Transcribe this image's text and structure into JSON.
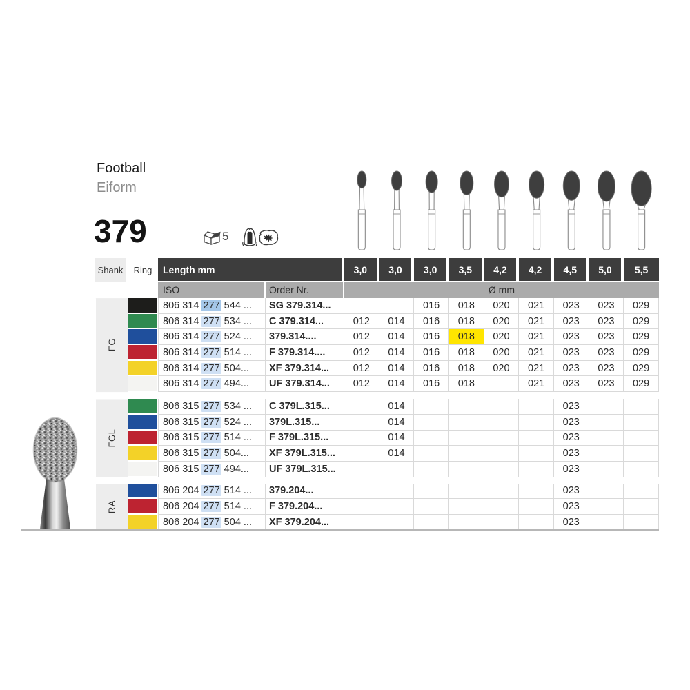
{
  "header": {
    "title": "Football",
    "subtitle": "Eiform",
    "figure_number": "379",
    "pack_quantity": "5",
    "icons": [
      "pack-box-icon",
      "crown-prep-icon",
      "caries-excavation-icon"
    ]
  },
  "colors": {
    "header_dark": "#3d3d3d",
    "subheader_gray": "#ababab",
    "label_light": "#ededed",
    "grid_line": "#d9d9d9",
    "iso_highlight": "#cfe0f4",
    "iso_highlight_strong": "#a5c7e9",
    "value_highlight": "#ffe500",
    "ring_black": "#1d1d1b",
    "ring_green": "#2f8a50",
    "ring_blue": "#1f4f9c",
    "ring_red": "#bd2331",
    "ring_yellow": "#f3d228",
    "ring_white": "#f4f4f2"
  },
  "table": {
    "shank_label": "Shank",
    "ring_label": "Ring",
    "length_label": "Length mm",
    "lengths": [
      "3,0",
      "3,0",
      "3,0",
      "3,5",
      "4,2",
      "4,2",
      "4,5",
      "5,0",
      "5,5"
    ],
    "iso_label": "ISO",
    "order_label": "Order Nr.",
    "diameter_label": "Ø mm",
    "sections": [
      {
        "shank": "FG",
        "rows": [
          {
            "ring": "black",
            "iso_prefix": "806 314 ",
            "iso_hl": "277",
            "iso_suffix": " 544 ...",
            "order": "SG 379.314...",
            "hl_strong": true,
            "values": [
              "",
              "",
              "016",
              "018",
              "020",
              "021",
              "023",
              "023",
              "029"
            ]
          },
          {
            "ring": "green",
            "iso_prefix": "806 314 ",
            "iso_hl": "277",
            "iso_suffix": " 534 ...",
            "order": "C 379.314...",
            "values": [
              "012",
              "014",
              "016",
              "018",
              "020",
              "021",
              "023",
              "023",
              "029"
            ]
          },
          {
            "ring": "blue",
            "iso_prefix": "806 314 ",
            "iso_hl": "277",
            "iso_suffix": " 524 ...",
            "order": "379.314....",
            "hl_col": 3,
            "values": [
              "012",
              "014",
              "016",
              "018",
              "020",
              "021",
              "023",
              "023",
              "029"
            ]
          },
          {
            "ring": "red",
            "iso_prefix": "806 314 ",
            "iso_hl": "277",
            "iso_suffix": " 514 ...",
            "order": "F 379.314....",
            "values": [
              "012",
              "014",
              "016",
              "018",
              "020",
              "021",
              "023",
              "023",
              "029"
            ]
          },
          {
            "ring": "yellow",
            "iso_prefix": "806 314 ",
            "iso_hl": "277",
            "iso_suffix": " 504...",
            "order": "XF 379.314...",
            "values": [
              "012",
              "014",
              "016",
              "018",
              "020",
              "021",
              "023",
              "023",
              "029"
            ]
          },
          {
            "ring": "white",
            "iso_prefix": "806 314 ",
            "iso_hl": "277",
            "iso_suffix": " 494...",
            "order": "UF 379.314...",
            "values": [
              "012",
              "014",
              "016",
              "018",
              "",
              "021",
              "023",
              "023",
              "029"
            ]
          }
        ]
      },
      {
        "shank": "FGL",
        "rows": [
          {
            "ring": "green",
            "iso_prefix": "806 315 ",
            "iso_hl": "277",
            "iso_suffix": " 534 ...",
            "order": "C 379L.315...",
            "values": [
              "",
              "014",
              "",
              "",
              "",
              "",
              "023",
              "",
              ""
            ]
          },
          {
            "ring": "blue",
            "iso_prefix": "806 315 ",
            "iso_hl": "277",
            "iso_suffix": " 524 ...",
            "order": "379L.315...",
            "values": [
              "",
              "014",
              "",
              "",
              "",
              "",
              "023",
              "",
              ""
            ]
          },
          {
            "ring": "red",
            "iso_prefix": "806 315 ",
            "iso_hl": "277",
            "iso_suffix": " 514 ...",
            "order": "F 379L.315...",
            "values": [
              "",
              "014",
              "",
              "",
              "",
              "",
              "023",
              "",
              ""
            ]
          },
          {
            "ring": "yellow",
            "iso_prefix": "806 315 ",
            "iso_hl": "277",
            "iso_suffix": " 504...",
            "order": "XF 379L.315...",
            "values": [
              "",
              "014",
              "",
              "",
              "",
              "",
              "023",
              "",
              ""
            ]
          },
          {
            "ring": "white",
            "iso_prefix": "806 315 ",
            "iso_hl": "277",
            "iso_suffix": " 494...",
            "order": "UF 379L.315...",
            "values": [
              "",
              "",
              "",
              "",
              "",
              "",
              "023",
              "",
              ""
            ]
          }
        ]
      },
      {
        "shank": "RA",
        "rows": [
          {
            "ring": "blue",
            "iso_prefix": "806 204 ",
            "iso_hl": "277",
            "iso_suffix": " 514 ...",
            "order": "379.204...",
            "values": [
              "",
              "",
              "",
              "",
              "",
              "",
              "023",
              "",
              ""
            ]
          },
          {
            "ring": "red",
            "iso_prefix": "806 204 ",
            "iso_hl": "277",
            "iso_suffix": " 514 ...",
            "order": "F 379.204...",
            "values": [
              "",
              "",
              "",
              "",
              "",
              "",
              "023",
              "",
              ""
            ]
          },
          {
            "ring": "yellow",
            "iso_prefix": "806 204 ",
            "iso_hl": "277",
            "iso_suffix": " 504 ...",
            "order": "XF 379.204...",
            "values": [
              "",
              "",
              "",
              "",
              "",
              "",
              "023",
              "",
              ""
            ]
          }
        ]
      }
    ]
  },
  "illustrations": {
    "bur_row_count": 9,
    "product_photo": "diamond-football-bur-photo"
  }
}
